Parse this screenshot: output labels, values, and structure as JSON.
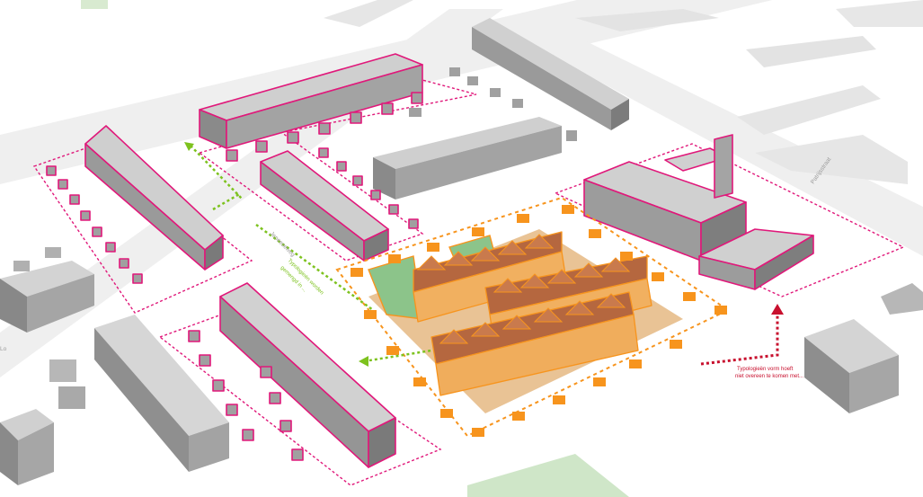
{
  "streets": {
    "north_east": "Patrijsstraat",
    "left_edge": "Lo",
    "middle": "Jeneeseweg"
  },
  "annotations": {
    "green_note": {
      "line1": "Typologieën worden",
      "line2": "gemengd in ..."
    },
    "red_note": {
      "line1": "Typologieën vorm hoeft",
      "line2": "niet overeen te komen met..."
    }
  },
  "colors": {
    "pink_outline": "#e0187a",
    "orange": "#f7941d",
    "green_arrow": "#7dc21e",
    "red_arrow": "#c8102e",
    "roof_brick": "#b5673f",
    "facade_orange": "#f1b060",
    "green_house": "#8cc48a"
  }
}
